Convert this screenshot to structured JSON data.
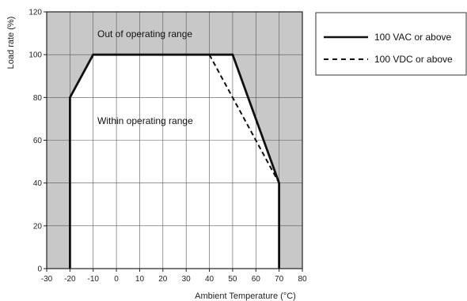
{
  "chart_data": {
    "type": "line",
    "x_range": [
      -30,
      80
    ],
    "x_ticks": [
      -30,
      -20,
      -10,
      0,
      10,
      20,
      30,
      40,
      50,
      60,
      70,
      80
    ],
    "y_range": [
      0,
      120
    ],
    "y_ticks": [
      0,
      20,
      40,
      60,
      80,
      100,
      120
    ],
    "xlabel": "Ambient Temperature (°C)",
    "ylabel": "Load rate (%)",
    "grid": true,
    "legend_position": "outside-right-top",
    "outside_region_color": "#c8c8c8",
    "inside_region_color": "#ffffff",
    "annotations": {
      "outside": "Out of operating range",
      "inside": "Within operating range"
    },
    "series": [
      {
        "name": "100 VAC or above",
        "style": "solid",
        "x": [
          -20,
          -20,
          -10,
          50,
          70,
          70
        ],
        "y": [
          0,
          80,
          100,
          100,
          40,
          0
        ]
      },
      {
        "name": "100 VDC or above",
        "style": "dashed",
        "x": [
          40,
          70
        ],
        "y": [
          100,
          40
        ]
      }
    ]
  }
}
